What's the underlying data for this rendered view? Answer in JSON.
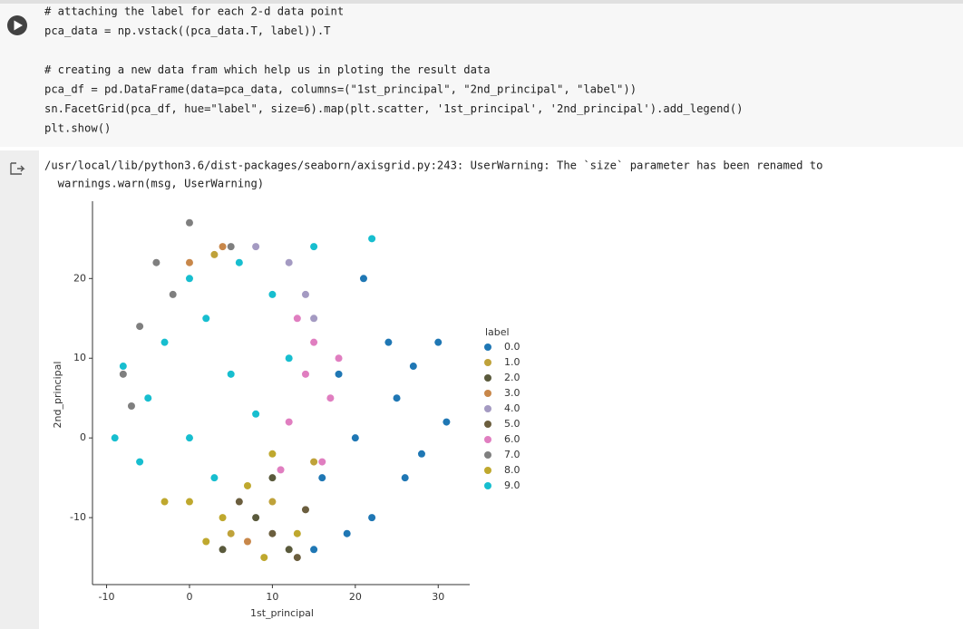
{
  "code": [
    [
      "# attaching the label for each 2-d data point",
      "pca_data = np.vstack((pca_data.T, label)).T"
    ],
    [
      "# creating a new data fram which help us in ploting the result data",
      "pca_df = pd.DataFrame(data=pca_data, columns=(\"1st_principal\", \"2nd_principal\", \"label\"))",
      "sn.FacetGrid(pca_df, hue=\"label\", size=6).map(plt.scatter, '1st_principal', '2nd_principal').add_legend()",
      "plt.show()"
    ]
  ],
  "output": [
    "/usr/local/lib/python3.6/dist-packages/seaborn/axisgrid.py:243: UserWarning: The `size` parameter has been renamed to",
    "  warnings.warn(msg, UserWarning)"
  ],
  "chart_data": {
    "type": "scatter",
    "xlabel": "1st_principal",
    "ylabel": "2nd_principal",
    "legend_title": "label",
    "xlim": [
      -11.7,
      33.8
    ],
    "ylim": [
      -18.4,
      29.7
    ],
    "xticks": [
      -10,
      0,
      10,
      20,
      30
    ],
    "yticks": [
      -10,
      0,
      10,
      20
    ],
    "series": [
      {
        "name": "0.0",
        "color": "#1f77b4",
        "x": [
          20,
          25,
          30,
          28,
          22,
          15,
          18,
          26,
          24,
          21,
          31,
          16,
          19,
          27
        ],
        "values": [
          0,
          5,
          12,
          -2,
          -10,
          -14,
          8,
          -5,
          12,
          20,
          2,
          -5,
          -12,
          9
        ]
      },
      {
        "name": "1.0",
        "color": "#bfa23a",
        "x": [
          3,
          10,
          5,
          15
        ],
        "values": [
          23,
          -8,
          -12,
          -3
        ]
      },
      {
        "name": "2.0",
        "color": "#5a5a3c",
        "x": [
          8,
          12,
          10,
          4
        ],
        "values": [
          -10,
          -14,
          -5,
          -14
        ]
      },
      {
        "name": "3.0",
        "color": "#c8874a",
        "x": [
          4,
          0,
          7
        ],
        "values": [
          24,
          22,
          -13
        ]
      },
      {
        "name": "4.0",
        "color": "#a49ac2",
        "x": [
          14,
          12,
          8,
          15
        ],
        "values": [
          18,
          22,
          24,
          15
        ]
      },
      {
        "name": "5.0",
        "color": "#6b5e3e",
        "x": [
          10,
          14,
          6,
          13
        ],
        "values": [
          -12,
          -9,
          -8,
          -15
        ]
      },
      {
        "name": "6.0",
        "color": "#e07ec0",
        "x": [
          14,
          17,
          12,
          15,
          16,
          11,
          13,
          18
        ],
        "values": [
          8,
          5,
          2,
          12,
          -3,
          -4,
          15,
          10
        ]
      },
      {
        "name": "7.0",
        "color": "#7f7f7f",
        "x": [
          -6,
          -8,
          -4,
          0,
          5,
          -2,
          -7
        ],
        "values": [
          14,
          8,
          22,
          27,
          24,
          18,
          4
        ]
      },
      {
        "name": "8.0",
        "color": "#bfa82e",
        "x": [
          0,
          4,
          -3,
          7,
          10,
          2,
          13,
          9
        ],
        "values": [
          -8,
          -10,
          -8,
          -6,
          -2,
          -13,
          -12,
          -15
        ]
      },
      {
        "name": "9.0",
        "color": "#17becf",
        "x": [
          -9,
          -5,
          0,
          5,
          -3,
          2,
          8,
          10,
          -6,
          3,
          6,
          15,
          22,
          12,
          0,
          -8
        ],
        "values": [
          0,
          5,
          0,
          8,
          12,
          15,
          3,
          18,
          -3,
          -5,
          22,
          24,
          25,
          10,
          20,
          9
        ]
      }
    ]
  }
}
